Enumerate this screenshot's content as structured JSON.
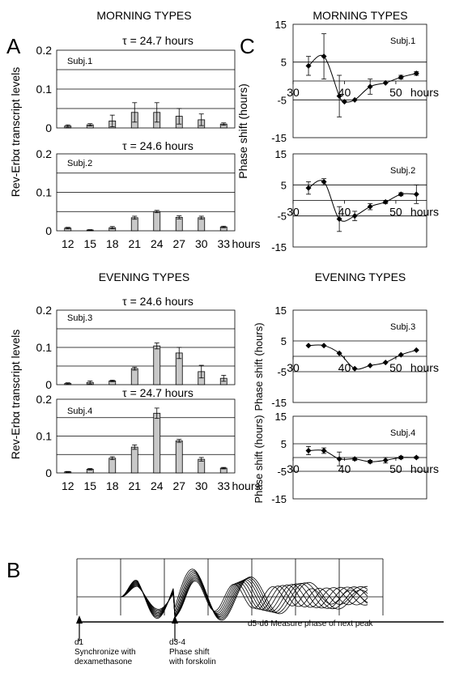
{
  "panel_letters": {
    "a": "A",
    "b": "B",
    "c": "C"
  },
  "section_titles": {
    "a_top": "MORNING TYPES",
    "a_bottom": "EVENING TYPES",
    "c_top": "MORNING TYPES",
    "c_bottom": "EVENING TYPES"
  },
  "colors": {
    "bar_fill": "#c8c8c8",
    "line": "#000000"
  },
  "panel_b": {
    "annotations": [
      {
        "id": "d1",
        "lines": [
          "d1",
          "Synchronize with",
          "dexamethasone"
        ]
      },
      {
        "id": "d34",
        "lines": [
          "d3-4",
          "Phase shift",
          "with forskolin"
        ]
      },
      {
        "id": "d56",
        "lines": [
          "d5-d6 Measure phase of next peak"
        ]
      }
    ]
  },
  "chart_data": [
    {
      "id": "A1",
      "type": "bar",
      "title": "τ = 24.7 hours",
      "subject": "Subj.1",
      "ylabel": "Rev-Erbα transcript levels",
      "categories": [
        "12",
        "15",
        "18",
        "21",
        "24",
        "27",
        "30",
        "33"
      ],
      "values": [
        0.005,
        0.008,
        0.018,
        0.04,
        0.04,
        0.03,
        0.021,
        0.01
      ],
      "errors": [
        0.003,
        0.003,
        0.015,
        0.025,
        0.025,
        0.02,
        0.015,
        0.003
      ],
      "ylim": [
        0,
        0.2
      ],
      "yticks": [
        "0",
        "0.1",
        "0.2"
      ],
      "grid": true
    },
    {
      "id": "A2",
      "type": "bar",
      "title": "τ = 24.6 hours",
      "subject": "Subj.2",
      "categories": [
        "12",
        "15",
        "18",
        "21",
        "24",
        "27",
        "30",
        "33"
      ],
      "values": [
        0.007,
        0.002,
        0.008,
        0.034,
        0.05,
        0.035,
        0.034,
        0.01
      ],
      "errors": [
        0.002,
        0.001,
        0.003,
        0.004,
        0.003,
        0.004,
        0.004,
        0.002
      ],
      "ylim": [
        0,
        0.2
      ],
      "yticks": [
        "0",
        "0.1",
        "0.2"
      ],
      "grid": true,
      "xticklabels": [
        "12",
        "15",
        "18",
        "21",
        "24",
        "27",
        "30",
        "33"
      ],
      "xunit": "hours"
    },
    {
      "id": "A3",
      "type": "bar",
      "title": "τ = 24.6 hours",
      "subject": "Subj.3",
      "ylabel": "Rev-Erbα transcript levels",
      "categories": [
        "12",
        "15",
        "18",
        "21",
        "24",
        "27",
        "30",
        "33"
      ],
      "values": [
        0.003,
        0.006,
        0.01,
        0.043,
        0.104,
        0.085,
        0.035,
        0.017
      ],
      "errors": [
        0.002,
        0.004,
        0.002,
        0.004,
        0.008,
        0.015,
        0.017,
        0.008
      ],
      "ylim": [
        0,
        0.2
      ],
      "yticks": [
        "0",
        "0.1",
        "0.2"
      ],
      "grid": true
    },
    {
      "id": "A4",
      "type": "bar",
      "title": "τ = 24.7 hours",
      "subject": "Subj.4",
      "categories": [
        "12",
        "15",
        "18",
        "21",
        "24",
        "27",
        "30",
        "33"
      ],
      "values": [
        0.003,
        0.01,
        0.04,
        0.07,
        0.162,
        0.087,
        0.037,
        0.013
      ],
      "errors": [
        0.001,
        0.002,
        0.004,
        0.006,
        0.014,
        0.004,
        0.005,
        0.002
      ],
      "ylim": [
        0,
        0.2
      ],
      "yticks": [
        "0",
        "0.1",
        "0.2"
      ],
      "grid": true,
      "xticklabels": [
        "12",
        "15",
        "18",
        "21",
        "24",
        "27",
        "30",
        "33"
      ],
      "xunit": "hours"
    },
    {
      "id": "C1",
      "type": "line",
      "subject": "Subj.1",
      "ylabel": "Phase shift (hours)",
      "x": [
        33,
        36,
        39,
        40,
        42,
        45,
        48,
        51,
        54
      ],
      "y": [
        4,
        6.5,
        -4,
        -5.5,
        -5,
        -1.5,
        -0.5,
        1,
        2
      ],
      "errors": [
        2.5,
        6,
        5.5,
        0,
        0,
        2,
        0,
        0.5,
        0.5
      ],
      "xlim": [
        30,
        56
      ],
      "ylim": [
        -15,
        15
      ],
      "yticks": [
        "15",
        "5",
        "-5",
        "-15"
      ],
      "xticks": [
        "30",
        "40",
        "50"
      ],
      "xunit": "hours"
    },
    {
      "id": "C2",
      "type": "line",
      "subject": "Subj.2",
      "ylabel": "Phase shift (hours)",
      "x": [
        33,
        36,
        39,
        42,
        45,
        48,
        51,
        54
      ],
      "y": [
        4,
        6,
        -6,
        -5,
        -2,
        -0.5,
        2,
        2
      ],
      "errors": [
        2,
        1,
        4,
        1.5,
        1,
        0.5,
        0.5,
        3
      ],
      "xlim": [
        30,
        56
      ],
      "ylim": [
        -15,
        15
      ],
      "yticks": [
        "15",
        "5",
        "-5",
        "-15"
      ],
      "xticks": [
        "30",
        "40",
        "50"
      ],
      "xunit": "hours"
    },
    {
      "id": "C3",
      "type": "line",
      "subject": "Subj.3",
      "ylabel": "Phase shift (hours)",
      "x": [
        33,
        36,
        39,
        42,
        45,
        48,
        51,
        54
      ],
      "y": [
        3.5,
        3.5,
        1,
        -4,
        -3,
        -2,
        0.5,
        2
      ],
      "errors": [
        0,
        0,
        0,
        0,
        0,
        0,
        0,
        0
      ],
      "xlim": [
        30,
        56
      ],
      "ylim": [
        -15,
        15
      ],
      "yticks": [
        "15",
        "5",
        "-5",
        "-15"
      ],
      "xticks": [
        "30",
        "40",
        "50"
      ],
      "xunit": "hours"
    },
    {
      "id": "C4",
      "type": "line",
      "subject": "Subj.4",
      "ylabel": "Phase shift (hours)",
      "x": [
        33,
        36,
        39,
        42,
        45,
        48,
        51,
        54
      ],
      "y": [
        2.5,
        2.5,
        -0.5,
        -0.5,
        -1.5,
        -1,
        0,
        0
      ],
      "errors": [
        1.5,
        1,
        2.5,
        0.5,
        0.5,
        1,
        0.5,
        0.3
      ],
      "xlim": [
        30,
        56
      ],
      "ylim": [
        -15,
        15
      ],
      "yticks": [
        "15",
        "5",
        "-5",
        "-15"
      ],
      "xticks": [
        "30",
        "40",
        "50"
      ],
      "xunit": "hours"
    }
  ]
}
